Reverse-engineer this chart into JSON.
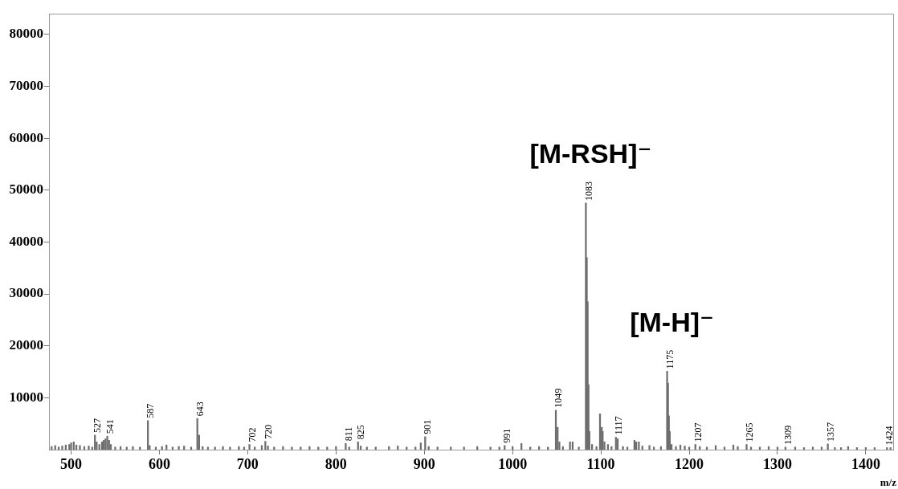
{
  "chart_data": {
    "type": "bar",
    "xlabel": "m/z",
    "color": "#6e6e6e",
    "x": [
      478,
      482,
      486,
      490,
      494,
      498,
      500,
      503,
      506,
      510,
      515,
      520,
      524,
      527,
      529,
      532,
      535,
      537,
      539,
      541,
      543,
      545,
      550,
      556,
      563,
      570,
      578,
      587,
      589,
      596,
      603,
      608,
      615,
      622,
      628,
      636,
      643,
      645,
      649,
      655,
      663,
      672,
      680,
      690,
      696,
      702,
      708,
      716,
      720,
      723,
      730,
      740,
      750,
      760,
      770,
      780,
      790,
      800,
      811,
      815,
      825,
      828,
      835,
      845,
      860,
      870,
      880,
      890,
      896,
      901,
      905,
      915,
      930,
      945,
      960,
      975,
      985,
      991,
      1000,
      1010,
      1020,
      1030,
      1040,
      1049,
      1051,
      1053,
      1057,
      1065,
      1068,
      1075,
      1083,
      1084,
      1085,
      1086,
      1087,
      1090,
      1095,
      1099,
      1101,
      1102,
      1104,
      1108,
      1112,
      1117,
      1119,
      1125,
      1130,
      1138,
      1140,
      1143,
      1147,
      1155,
      1160,
      1168,
      1175,
      1176,
      1177,
      1178,
      1180,
      1185,
      1190,
      1195,
      1200,
      1207,
      1212,
      1220,
      1230,
      1240,
      1250,
      1255,
      1265,
      1270,
      1280,
      1290,
      1300,
      1309,
      1320,
      1330,
      1340,
      1350,
      1357,
      1365,
      1372,
      1380,
      1390,
      1400,
      1410,
      1424,
      1428
    ],
    "values": [
      600,
      800,
      500,
      700,
      900,
      1000,
      1300,
      1500,
      900,
      800,
      600,
      700,
      500,
      2800,
      1500,
      1000,
      1500,
      1800,
      2100,
      2600,
      1800,
      1000,
      500,
      600,
      500,
      600,
      500,
      5600,
      800,
      500,
      600,
      900,
      500,
      600,
      700,
      500,
      6000,
      2800,
      600,
      500,
      500,
      600,
      500,
      600,
      500,
      1000,
      500,
      800,
      1600,
      700,
      500,
      600,
      500,
      500,
      600,
      500,
      500,
      600,
      1200,
      500,
      1500,
      700,
      500,
      500,
      600,
      700,
      500,
      500,
      1300,
      2500,
      600,
      500,
      500,
      500,
      600,
      500,
      500,
      800,
      600,
      1200,
      500,
      600,
      500,
      7600,
      4300,
      1500,
      600,
      1500,
      1500,
      500,
      47500,
      37000,
      28500,
      12500,
      3500,
      1000,
      600,
      6900,
      4300,
      3500,
      1500,
      1000,
      600,
      2400,
      2100,
      600,
      500,
      1800,
      1500,
      1500,
      700,
      800,
      500,
      600,
      15100,
      12800,
      6500,
      3500,
      1000,
      600,
      900,
      700,
      500,
      1000,
      600,
      500,
      800,
      500,
      900,
      600,
      1000,
      500,
      500,
      600,
      500,
      500,
      500,
      400,
      500,
      500,
      1100,
      400,
      400,
      600,
      400,
      400,
      400,
      400,
      400
    ],
    "xlim": [
      475,
      1431
    ],
    "xticks": [
      500,
      600,
      700,
      800,
      900,
      1000,
      1100,
      1200,
      1300,
      1400
    ],
    "ylim": [
      0,
      84000
    ],
    "yticks": [
      10000,
      20000,
      30000,
      40000,
      50000,
      60000,
      70000,
      80000
    ],
    "grid": false,
    "legend": false,
    "annotations": [
      {
        "text": "527",
        "x": 527,
        "y": 2800
      },
      {
        "text": "541",
        "x": 541,
        "y": 2600
      },
      {
        "text": "587",
        "x": 587,
        "y": 5600
      },
      {
        "text": "643",
        "x": 643,
        "y": 6000
      },
      {
        "text": "702",
        "x": 702,
        "y": 1000
      },
      {
        "text": "720",
        "x": 720,
        "y": 1600
      },
      {
        "text": "811",
        "x": 811,
        "y": 1200
      },
      {
        "text": "825",
        "x": 825,
        "y": 1500
      },
      {
        "text": "901",
        "x": 901,
        "y": 2500
      },
      {
        "text": "991",
        "x": 991,
        "y": 800
      },
      {
        "text": "1049",
        "x": 1049,
        "y": 7600
      },
      {
        "text": "1083",
        "x": 1083,
        "y": 47500
      },
      {
        "text": "1117",
        "x": 1117,
        "y": 2400
      },
      {
        "text": "1175",
        "x": 1175,
        "y": 15100
      },
      {
        "text": "1207",
        "x": 1207,
        "y": 1000
      },
      {
        "text": "1265",
        "x": 1265,
        "y": 1000
      },
      {
        "text": "1309",
        "x": 1309,
        "y": 500
      },
      {
        "text": "1357",
        "x": 1357,
        "y": 1100
      },
      {
        "text": "1424",
        "x": 1424,
        "y": 400
      },
      "[M-RSH]⁻",
      "[M-H]⁻"
    ]
  }
}
